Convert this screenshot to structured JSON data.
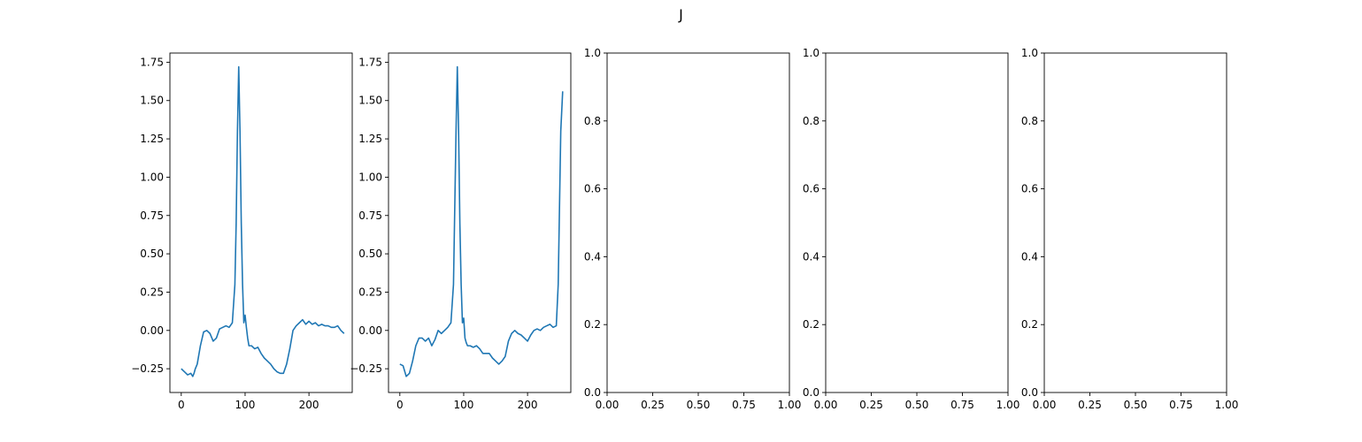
{
  "figure": {
    "title": "J"
  },
  "chart_data": [
    {
      "type": "line",
      "title": "",
      "xlabel": "",
      "ylabel": "",
      "xlim": [
        -17.75,
        267.75
      ],
      "ylim": [
        -0.405,
        1.81
      ],
      "xticks": [
        0,
        100,
        200
      ],
      "xtick_labels": [
        "0",
        "100",
        "200"
      ],
      "yticks": [
        -0.25,
        0.0,
        0.25,
        0.5,
        0.75,
        1.0,
        1.25,
        1.5,
        1.75
      ],
      "ytick_labels": [
        "−0.25",
        "0.00",
        "0.25",
        "0.50",
        "0.75",
        "1.00",
        "1.25",
        "1.50",
        "1.75"
      ],
      "grid": false,
      "series": [
        {
          "color": "#1f77b4",
          "x": [
            0,
            5,
            10,
            15,
            18,
            20,
            22,
            25,
            30,
            35,
            40,
            45,
            50,
            55,
            60,
            65,
            70,
            75,
            80,
            84,
            86,
            88,
            90,
            92,
            94,
            96,
            98,
            100,
            102,
            104,
            106,
            110,
            115,
            120,
            125,
            130,
            135,
            140,
            145,
            150,
            155,
            160,
            165,
            170,
            175,
            180,
            185,
            190,
            195,
            200,
            205,
            210,
            215,
            220,
            225,
            230,
            235,
            240,
            245,
            250,
            255
          ],
          "y": [
            -0.25,
            -0.27,
            -0.29,
            -0.28,
            -0.3,
            -0.28,
            -0.25,
            -0.22,
            -0.1,
            -0.01,
            0.0,
            -0.02,
            -0.07,
            -0.05,
            0.01,
            0.02,
            0.03,
            0.02,
            0.05,
            0.3,
            0.7,
            1.3,
            1.72,
            1.3,
            0.7,
            0.3,
            0.05,
            0.1,
            0.02,
            -0.05,
            -0.1,
            -0.1,
            -0.12,
            -0.11,
            -0.15,
            -0.18,
            -0.2,
            -0.22,
            -0.25,
            -0.27,
            -0.28,
            -0.28,
            -0.22,
            -0.12,
            0.0,
            0.03,
            0.05,
            0.07,
            0.04,
            0.06,
            0.04,
            0.05,
            0.03,
            0.04,
            0.03,
            0.03,
            0.02,
            0.02,
            0.03,
            0.0,
            -0.02
          ]
        }
      ]
    },
    {
      "type": "line",
      "title": "",
      "xlabel": "",
      "ylabel": "",
      "xlim": [
        -17.75,
        267.75
      ],
      "ylim": [
        -0.405,
        1.81
      ],
      "xticks": [
        0,
        100,
        200
      ],
      "xtick_labels": [
        "0",
        "100",
        "200"
      ],
      "yticks": [
        -0.25,
        0.0,
        0.25,
        0.5,
        0.75,
        1.0,
        1.25,
        1.5,
        1.75
      ],
      "ytick_labels": [
        "−0.25",
        "0.00",
        "0.25",
        "0.50",
        "0.75",
        "1.00",
        "1.25",
        "1.50",
        "1.75"
      ],
      "grid": false,
      "series": [
        {
          "color": "#1f77b4",
          "x": [
            0,
            5,
            10,
            15,
            20,
            25,
            30,
            35,
            40,
            45,
            50,
            55,
            60,
            65,
            70,
            75,
            80,
            84,
            86,
            88,
            90,
            92,
            94,
            96,
            98,
            100,
            102,
            104,
            106,
            110,
            115,
            120,
            125,
            130,
            135,
            140,
            145,
            150,
            155,
            160,
            165,
            170,
            175,
            180,
            185,
            190,
            195,
            200,
            205,
            210,
            215,
            220,
            225,
            230,
            235,
            240,
            245,
            248,
            250,
            252,
            255
          ],
          "y": [
            -0.22,
            -0.23,
            -0.3,
            -0.28,
            -0.2,
            -0.1,
            -0.05,
            -0.05,
            -0.07,
            -0.05,
            -0.1,
            -0.06,
            0.0,
            -0.02,
            0.0,
            0.02,
            0.05,
            0.3,
            0.8,
            1.3,
            1.72,
            1.3,
            0.7,
            0.3,
            0.05,
            0.08,
            -0.05,
            -0.08,
            -0.1,
            -0.1,
            -0.11,
            -0.1,
            -0.12,
            -0.15,
            -0.15,
            -0.15,
            -0.18,
            -0.2,
            -0.22,
            -0.2,
            -0.17,
            -0.07,
            -0.02,
            0.0,
            -0.02,
            -0.03,
            -0.05,
            -0.07,
            -0.03,
            0.0,
            0.01,
            0.0,
            0.02,
            0.03,
            0.04,
            0.02,
            0.03,
            0.3,
            0.8,
            1.3,
            1.56
          ]
        }
      ]
    },
    {
      "type": "line",
      "title": "",
      "xlabel": "",
      "ylabel": "",
      "xlim": [
        0,
        1
      ],
      "ylim": [
        0,
        1
      ],
      "xticks": [
        0,
        0.25,
        0.5,
        0.75,
        1.0
      ],
      "xtick_labels": [
        "0.00",
        "0.25",
        "0.50",
        "0.75",
        "1.00"
      ],
      "yticks": [
        0,
        0.2,
        0.4,
        0.6,
        0.8,
        1.0
      ],
      "ytick_labels": [
        "0.0",
        "0.2",
        "0.4",
        "0.6",
        "0.8",
        "1.0"
      ],
      "grid": false,
      "series": []
    },
    {
      "type": "line",
      "title": "",
      "xlabel": "",
      "ylabel": "",
      "xlim": [
        0,
        1
      ],
      "ylim": [
        0,
        1
      ],
      "xticks": [
        0,
        0.25,
        0.5,
        0.75,
        1.0
      ],
      "xtick_labels": [
        "0.00",
        "0.25",
        "0.50",
        "0.75",
        "1.00"
      ],
      "yticks": [
        0,
        0.2,
        0.4,
        0.6,
        0.8,
        1.0
      ],
      "ytick_labels": [
        "0.0",
        "0.2",
        "0.4",
        "0.6",
        "0.8",
        "1.0"
      ],
      "grid": false,
      "series": []
    },
    {
      "type": "line",
      "title": "",
      "xlabel": "",
      "ylabel": "",
      "xlim": [
        0,
        1
      ],
      "ylim": [
        0,
        1
      ],
      "xticks": [
        0,
        0.25,
        0.5,
        0.75,
        1.0
      ],
      "xtick_labels": [
        "0.00",
        "0.25",
        "0.50",
        "0.75",
        "1.00"
      ],
      "yticks": [
        0,
        0.2,
        0.4,
        0.6,
        0.8,
        1.0
      ],
      "ytick_labels": [
        "0.0",
        "0.2",
        "0.4",
        "0.6",
        "0.8",
        "1.0"
      ],
      "grid": false,
      "series": []
    }
  ]
}
